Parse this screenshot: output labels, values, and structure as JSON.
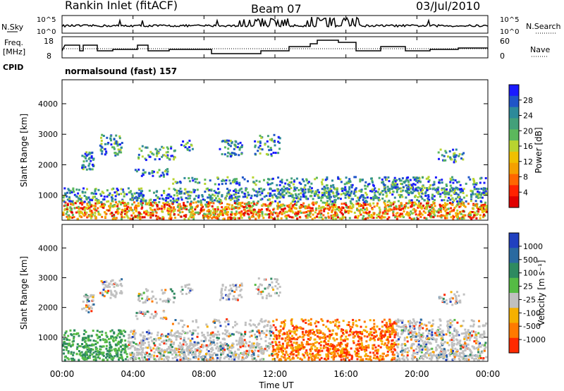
{
  "header": {
    "station": "Rankin Inlet (fitACF)",
    "beam": "Beam 07",
    "date": "03/Jul/2010"
  },
  "top_panels": {
    "nsky_label": "N.Sky",
    "nsky_ticks": [
      "10^5",
      "10^0"
    ],
    "nsearch_label": "N.Search",
    "freq_label": "Freq.",
    "freq_unit": "[MHz]",
    "freq_ticks": [
      "18",
      "8"
    ],
    "nave_label": "Nave",
    "nave_ticks": [
      "60",
      "0"
    ],
    "cpid_label": "CPID",
    "cpid_text": "normalsound (fast) 157"
  },
  "chart_data": [
    {
      "type": "heatmap",
      "name": "power",
      "ylabel": "Slant Range [km]",
      "yticks": [
        "4000",
        "3000",
        "2000",
        "1000"
      ],
      "colorbar_label": "Power [dB]",
      "colorbar_ticks": [
        "28",
        "24",
        "20",
        "16",
        "12",
        "8",
        "4"
      ],
      "colors": [
        "#1a1aff",
        "#1f55c8",
        "#2d8a9a",
        "#43a07a",
        "#5cb85c",
        "#b8d430",
        "#f0c000",
        "#f5a000",
        "#ff6600",
        "#ff2200",
        "#e00000"
      ]
    },
    {
      "type": "heatmap",
      "name": "velocity",
      "ylabel": "Slant Range [km]",
      "yticks": [
        "4000",
        "3000",
        "2000",
        "1000"
      ],
      "colorbar_label": "Velocity [m s⁻¹]",
      "colorbar_ticks": [
        "1000",
        "500",
        "100",
        "25",
        "-25",
        "-100",
        "-500",
        "-1000"
      ],
      "colors": [
        "#2040c0",
        "#2a6aa0",
        "#2e8a60",
        "#55bb44",
        "#c0c0c0",
        "#f5b000",
        "#ff7a00",
        "#ff2a00"
      ]
    }
  ],
  "xaxis": {
    "label": "Time UT",
    "ticks": [
      "00:00",
      "04:00",
      "08:00",
      "12:00",
      "16:00",
      "20:00",
      "00:00"
    ]
  }
}
